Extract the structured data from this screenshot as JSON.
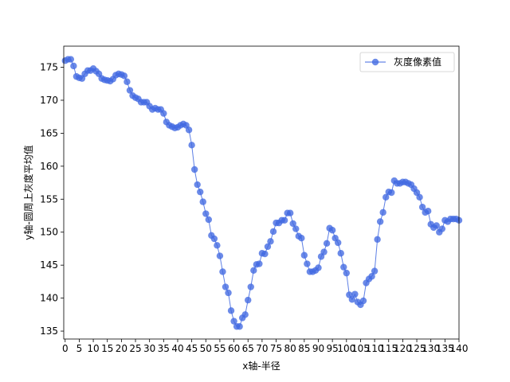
{
  "chart_data": {
    "type": "line",
    "title": "",
    "xlabel": "x轴-半径",
    "ylabel": "y轴-圆周上灰度平均值",
    "xlim": [
      -0.5,
      140
    ],
    "ylim": [
      133.8,
      178.2
    ],
    "xticks": [
      0,
      5,
      10,
      15,
      20,
      25,
      30,
      35,
      40,
      45,
      50,
      55,
      60,
      65,
      70,
      75,
      80,
      85,
      90,
      95,
      100,
      105,
      110,
      115,
      120,
      125,
      130,
      135,
      140
    ],
    "yticks": [
      135,
      140,
      145,
      150,
      155,
      160,
      165,
      170,
      175
    ],
    "grid": false,
    "legend_position": "top-right",
    "color": "#4169e1",
    "marker": "circle",
    "series": [
      {
        "name": "灰度像素值",
        "x": [
          0,
          1,
          2,
          3,
          4,
          5,
          6,
          7,
          8,
          9,
          10,
          11,
          12,
          13,
          14,
          15,
          16,
          17,
          18,
          19,
          20,
          21,
          22,
          23,
          24,
          25,
          26,
          27,
          28,
          29,
          30,
          31,
          32,
          33,
          34,
          35,
          36,
          37,
          38,
          39,
          40,
          41,
          42,
          43,
          44,
          45,
          46,
          47,
          48,
          49,
          50,
          51,
          52,
          53,
          54,
          55,
          56,
          57,
          58,
          59,
          60,
          61,
          62,
          63,
          64,
          65,
          66,
          67,
          68,
          69,
          70,
          71,
          72,
          73,
          74,
          75,
          76,
          77,
          78,
          79,
          80,
          81,
          82,
          83,
          84,
          85,
          86,
          87,
          88,
          89,
          90,
          91,
          92,
          93,
          94,
          95,
          96,
          97,
          98,
          99,
          100,
          101,
          102,
          103,
          104,
          105,
          106,
          107,
          108,
          109,
          110,
          111,
          112,
          113,
          114,
          115,
          116,
          117,
          118,
          119,
          120,
          121,
          122,
          123,
          124,
          125,
          126,
          127,
          128,
          129,
          130,
          131,
          132,
          133,
          134,
          135,
          136,
          137,
          138,
          139,
          140
        ],
        "values": [
          176.0,
          176.2,
          176.2,
          175.2,
          173.6,
          173.4,
          173.3,
          174.0,
          174.5,
          174.5,
          174.8,
          174.4,
          174.0,
          173.3,
          173.1,
          173.0,
          172.9,
          173.2,
          173.8,
          174.0,
          173.9,
          173.7,
          172.8,
          171.5,
          170.7,
          170.4,
          170.2,
          169.7,
          169.7,
          169.7,
          169.1,
          168.6,
          168.8,
          168.6,
          168.6,
          168.0,
          166.7,
          166.2,
          166.0,
          165.8,
          165.9,
          166.2,
          166.4,
          166.2,
          165.5,
          163.2,
          159.5,
          157.2,
          156.1,
          154.6,
          152.8,
          151.9,
          149.5,
          149.0,
          148.0,
          146.4,
          144.0,
          141.7,
          140.8,
          138.1,
          136.5,
          135.7,
          135.7,
          137.0,
          137.5,
          139.7,
          141.7,
          144.2,
          145.1,
          145.2,
          146.8,
          146.7,
          147.8,
          148.6,
          150.1,
          151.4,
          151.4,
          151.8,
          151.8,
          152.9,
          152.9,
          151.3,
          150.5,
          149.4,
          149.1,
          146.5,
          145.2,
          144.0,
          144.0,
          144.2,
          144.6,
          146.3,
          147.0,
          148.3,
          150.6,
          150.3,
          149.1,
          148.4,
          146.8,
          144.7,
          143.8,
          140.5,
          139.8,
          140.6,
          139.4,
          139.0,
          139.6,
          142.3,
          142.9,
          143.3,
          144.1,
          148.9,
          151.6,
          153.0,
          155.3,
          156.1,
          156.0,
          157.8,
          157.4,
          157.4,
          157.6,
          157.6,
          157.4,
          157.2,
          156.6,
          156.0,
          155.3,
          153.8,
          153.0,
          153.2,
          151.2,
          150.7,
          151.0,
          150.0,
          150.5,
          151.8,
          151.6,
          152.0,
          152.0,
          152.0,
          151.8
        ]
      }
    ]
  }
}
